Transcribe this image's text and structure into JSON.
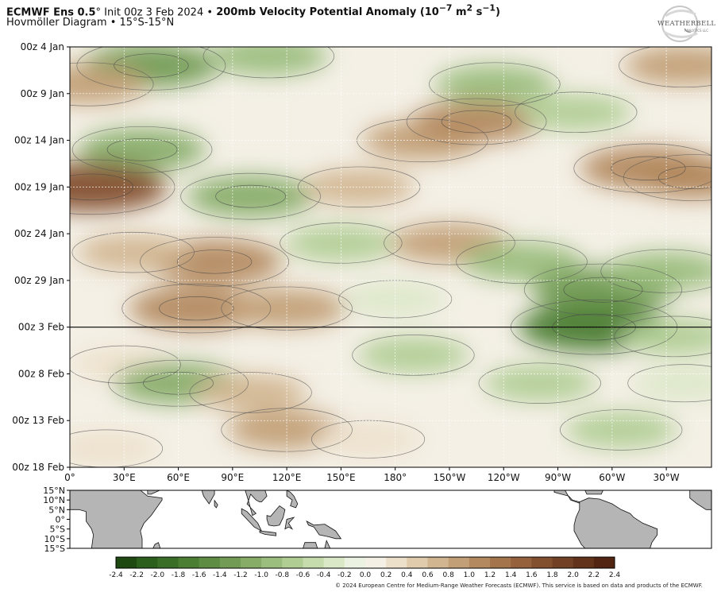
{
  "header": {
    "model": "ECMWF Ens 0.5",
    "deg": "°",
    "init": "Init 00z 3 Feb 2024",
    "sep": "•",
    "field_pre": "200mb Velocity Potential Anomaly (10",
    "exp1": "−7",
    "field_mid": " m",
    "exp2": "2",
    "field_mid2": " s",
    "exp3": "−1",
    "field_post": ")",
    "diagram": "Hovmöller Diagram",
    "band": "15°S-15°N"
  },
  "logo": {
    "word": "WEATHERBELL",
    "sub": "ANALYTICS LLC"
  },
  "copyright": "© 2024 European Centre for Medium-Range Weather Forecasts (ECMWF). This service is based on data and products of the ECMWF.",
  "chart_data": {
    "type": "heatmap",
    "x_axis": {
      "ticks": [
        "0°",
        "30°E",
        "60°E",
        "90°E",
        "120°E",
        "150°E",
        "180°",
        "150°W",
        "120°W",
        "90°W",
        "60°W",
        "30°W"
      ],
      "range": [
        0,
        355
      ]
    },
    "y_axis": {
      "ticks": [
        "00z 4 Jan",
        "00z 9 Jan",
        "00z 14 Jan",
        "00z 19 Jan",
        "00z 24 Jan",
        "00z 29 Jan",
        "00z 3 Feb",
        "00z 8 Feb",
        "00z 13 Feb",
        "00z 18 Feb"
      ],
      "range": [
        "2024-01-04",
        "2024-02-18"
      ]
    },
    "forecast_start": "00z 3 Feb",
    "map_lat_ticks": [
      "15°N",
      "10°N",
      "5°N",
      "0°",
      "5°S",
      "10°S",
      "15°S"
    ],
    "colorbar": {
      "ticks": [
        "-2.4",
        "-2.2",
        "-2.0",
        "-1.8",
        "-1.6",
        "-1.4",
        "-1.2",
        "-1.0",
        "-0.8",
        "-0.6",
        "-0.4",
        "-0.2",
        "0.0",
        "0.2",
        "0.4",
        "0.6",
        "0.8",
        "1.0",
        "1.2",
        "1.4",
        "1.6",
        "1.8",
        "2.0",
        "2.2",
        "2.4"
      ],
      "colors": [
        "#1e4a12",
        "#2c5e1c",
        "#3a6e26",
        "#4b7d33",
        "#5e8c42",
        "#729c55",
        "#86ac68",
        "#9bbd7d",
        "#b0cd93",
        "#c6dcac",
        "#dbe8c8",
        "#ecf2e2",
        "#f4f0e6",
        "#ede0cb",
        "#e0cbad",
        "#d1b590",
        "#c29f76",
        "#b3895f",
        "#a4744c",
        "#94613c",
        "#83502f",
        "#724024",
        "#62321b",
        "#522513"
      ]
    },
    "anomaly_features": [
      {
        "lon": 45,
        "day": 2,
        "value": -1.2
      },
      {
        "lon": 110,
        "day": 1,
        "value": -0.8
      },
      {
        "lon": 235,
        "day": 4,
        "value": -0.8
      },
      {
        "lon": 340,
        "day": 2,
        "value": 0.8
      },
      {
        "lon": 10,
        "day": 4,
        "value": 0.8
      },
      {
        "lon": 40,
        "day": 11,
        "value": -1.0
      },
      {
        "lon": 195,
        "day": 10,
        "value": 0.8
      },
      {
        "lon": 225,
        "day": 8,
        "value": 1.0
      },
      {
        "lon": 280,
        "day": 7,
        "value": -0.6
      },
      {
        "lon": 320,
        "day": 13,
        "value": 1.2
      },
      {
        "lon": 345,
        "day": 14,
        "value": 1.0
      },
      {
        "lon": 12,
        "day": 15,
        "value": 1.6
      },
      {
        "lon": 100,
        "day": 16,
        "value": -1.0
      },
      {
        "lon": 160,
        "day": 15,
        "value": 0.6
      },
      {
        "lon": 80,
        "day": 23,
        "value": 1.2
      },
      {
        "lon": 35,
        "day": 22,
        "value": 0.6
      },
      {
        "lon": 150,
        "day": 21,
        "value": -0.6
      },
      {
        "lon": 210,
        "day": 21,
        "value": 0.8
      },
      {
        "lon": 250,
        "day": 23,
        "value": -0.8
      },
      {
        "lon": 295,
        "day": 26,
        "value": -1.4
      },
      {
        "lon": 330,
        "day": 24,
        "value": -0.8
      },
      {
        "lon": 70,
        "day": 28,
        "value": 1.2
      },
      {
        "lon": 120,
        "day": 28,
        "value": 0.8
      },
      {
        "lon": 180,
        "day": 27,
        "value": -0.4
      },
      {
        "lon": 290,
        "day": 30,
        "value": -1.6
      },
      {
        "lon": 335,
        "day": 31,
        "value": -0.6
      },
      {
        "lon": 30,
        "day": 34,
        "value": 0.4
      },
      {
        "lon": 60,
        "day": 36,
        "value": -1.0
      },
      {
        "lon": 100,
        "day": 37,
        "value": 0.6
      },
      {
        "lon": 190,
        "day": 33,
        "value": -0.6
      },
      {
        "lon": 260,
        "day": 36,
        "value": -0.6
      },
      {
        "lon": 340,
        "day": 36,
        "value": -0.4
      },
      {
        "lon": 120,
        "day": 41,
        "value": 0.8
      },
      {
        "lon": 165,
        "day": 42,
        "value": 0.4
      },
      {
        "lon": 305,
        "day": 41,
        "value": -0.6
      },
      {
        "lon": 20,
        "day": 43,
        "value": 0.4
      }
    ]
  }
}
